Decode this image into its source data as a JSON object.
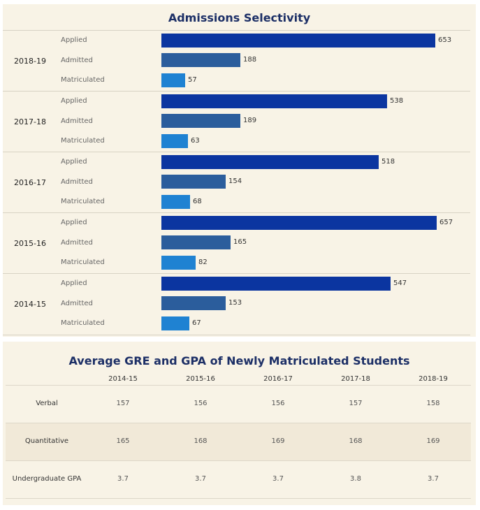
{
  "chart_data": [
    {
      "type": "bar",
      "title": "Admissions Selectivity",
      "orientation": "horizontal",
      "categories": [
        "Applied",
        "Admitted",
        "Matriculated"
      ],
      "colors": {
        "Applied": "#0b35a0",
        "Admitted": "#2b5d9c",
        "Matriculated": "#1f82d2"
      },
      "xlim": [
        0,
        680
      ],
      "groups": [
        {
          "label": "2018-19",
          "values": [
            653,
            188,
            57
          ]
        },
        {
          "label": "2017-18",
          "values": [
            538,
            189,
            63
          ]
        },
        {
          "label": "2016-17",
          "values": [
            518,
            154,
            68
          ]
        },
        {
          "label": "2015-16",
          "values": [
            657,
            165,
            82
          ]
        },
        {
          "label": "2014-15",
          "values": [
            547,
            153,
            67
          ]
        }
      ]
    },
    {
      "type": "table",
      "title": "Average GRE and GPA of Newly Matriculated Students",
      "columns": [
        "2014-15",
        "2015-16",
        "2016-17",
        "2017-18",
        "2018-19"
      ],
      "rows": [
        {
          "label": "Verbal",
          "values": [
            "157",
            "156",
            "156",
            "157",
            "158"
          ]
        },
        {
          "label": "Quantitative",
          "values": [
            "165",
            "168",
            "169",
            "168",
            "169"
          ]
        },
        {
          "label": "Undergraduate GPA",
          "values": [
            "3.7",
            "3.7",
            "3.7",
            "3.8",
            "3.7"
          ]
        }
      ]
    }
  ]
}
